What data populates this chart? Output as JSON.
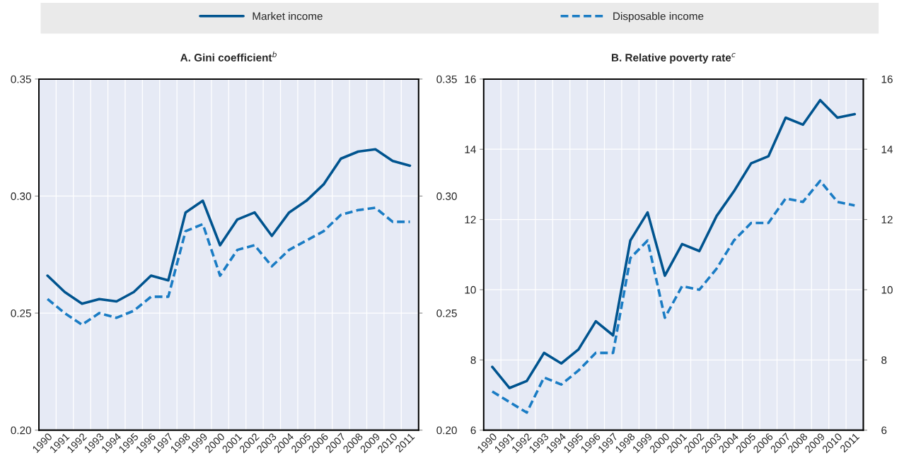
{
  "chart_data": [
    {
      "type": "line",
      "title": "A. Gini coefficient$^{b}$",
      "categories": [
        "1990",
        "1991",
        "1992",
        "1993",
        "1994",
        "1995",
        "1996",
        "1997",
        "1998",
        "1999",
        "2000",
        "2001",
        "2002",
        "2003",
        "2004",
        "2005",
        "2006",
        "2007",
        "2008",
        "2009",
        "2010",
        "2011"
      ],
      "series": [
        {
          "name": "Market income",
          "color": "#00548f",
          "line_style": "solid",
          "values": [
            0.266,
            0.259,
            0.254,
            0.256,
            0.255,
            0.259,
            0.266,
            0.264,
            0.293,
            0.298,
            0.279,
            0.29,
            0.293,
            0.283,
            0.293,
            0.298,
            0.305,
            0.316,
            0.319,
            0.32,
            0.315,
            0.313
          ]
        },
        {
          "name": "Disposable income",
          "color": "#1a7cc4",
          "line_style": "dashed",
          "values": [
            0.256,
            0.25,
            0.245,
            0.25,
            0.248,
            0.251,
            0.257,
            0.257,
            0.285,
            0.288,
            0.266,
            0.277,
            0.279,
            0.27,
            0.277,
            0.281,
            0.285,
            0.292,
            0.294,
            0.295,
            0.289,
            0.289
          ]
        }
      ],
      "ylim": [
        0.2,
        0.35
      ],
      "yticks": [
        {
          "value": 0.2,
          "label": "0.20"
        },
        0.25,
        {
          "value": 0.3,
          "label": "0.30"
        },
        0.35
      ],
      "y2lim": [
        0.2,
        0.35
      ],
      "y2ticks": [
        {
          "value": 0.2,
          "label": "0.20"
        },
        0.25,
        {
          "value": 0.3,
          "label": "0.30"
        },
        0.35
      ],
      "grid": true,
      "legend": "top"
    },
    {
      "type": "line",
      "title": "B. Relative poverty rate$^{c}$",
      "categories": [
        "1990",
        "1991",
        "1992",
        "1993",
        "1994",
        "1995",
        "1996",
        "1997",
        "1998",
        "1999",
        "2000",
        "2001",
        "2002",
        "2003",
        "2004",
        "2005",
        "2006",
        "2007",
        "2008",
        "2009",
        "2010",
        "2011"
      ],
      "series": [
        {
          "name": "Market income",
          "color": "#00548f",
          "line_style": "solid",
          "values": [
            7.8,
            7.2,
            7.4,
            8.2,
            7.9,
            8.3,
            9.1,
            8.7,
            11.4,
            12.2,
            10.4,
            11.3,
            11.1,
            12.1,
            12.8,
            13.6,
            13.8,
            14.9,
            14.7,
            15.4,
            14.9,
            15.0
          ]
        },
        {
          "name": "Disposable income",
          "color": "#1a7cc4",
          "line_style": "dashed",
          "values": [
            7.1,
            6.8,
            6.5,
            7.5,
            7.3,
            7.7,
            8.2,
            8.2,
            10.9,
            11.4,
            9.2,
            10.1,
            10.0,
            10.6,
            11.4,
            11.9,
            11.9,
            12.6,
            12.5,
            13.1,
            12.5,
            12.4
          ]
        }
      ],
      "ylim": [
        6,
        16
      ],
      "yticks": [
        6,
        8,
        10,
        12,
        14,
        16
      ],
      "y2lim": [
        6,
        16
      ],
      "y2ticks": [
        6,
        8,
        10,
        12,
        14,
        16
      ],
      "grid": true,
      "legend": "top"
    }
  ]
}
